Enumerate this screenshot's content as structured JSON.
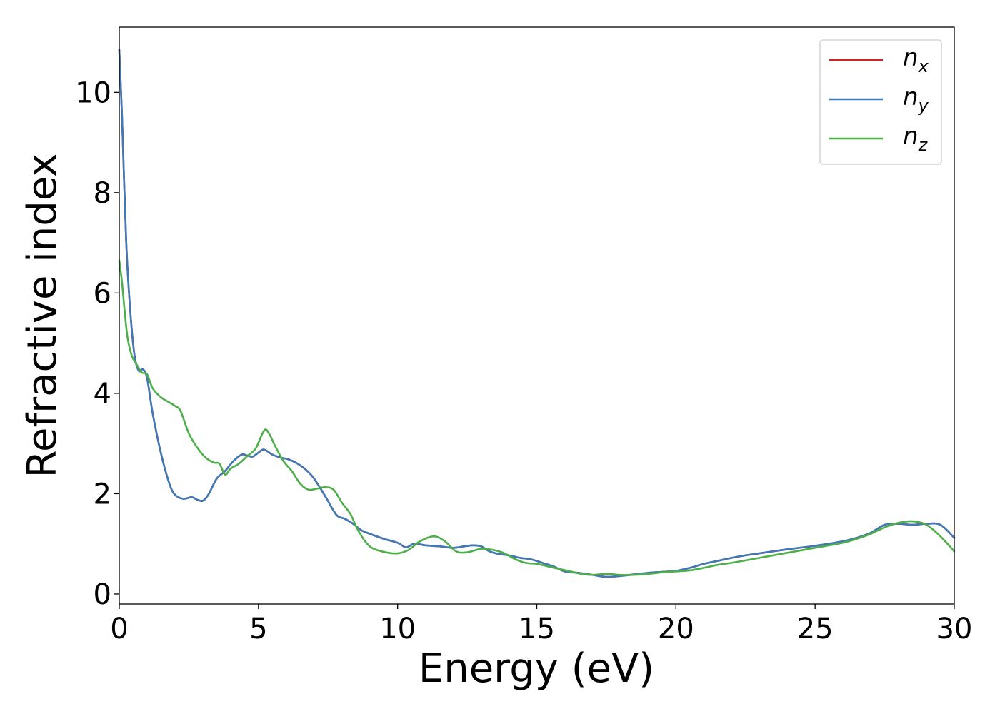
{
  "chart_data": {
    "type": "line",
    "title": "",
    "xlabel": "Energy (eV)",
    "ylabel": "Refractive index",
    "xlim": [
      0,
      30
    ],
    "ylim": [
      -0.2,
      11.3
    ],
    "xticks": [
      0,
      5,
      10,
      15,
      20,
      25,
      30
    ],
    "yticks": [
      0,
      2,
      4,
      6,
      8,
      10
    ],
    "grid": false,
    "legend_position": "top-right",
    "series": [
      {
        "name": "n_x",
        "legend": {
          "base": "n",
          "sub": "x"
        },
        "color": "#e41a1c",
        "x": [
          0,
          0.1,
          0.25,
          0.4,
          0.55,
          0.7,
          0.85,
          1.0,
          1.2,
          1.5,
          1.8,
          2.0,
          2.3,
          2.6,
          2.8,
          3.0,
          3.2,
          3.5,
          3.8,
          4.1,
          4.4,
          4.6,
          4.8,
          5.0,
          5.2,
          5.5,
          5.8,
          6.1,
          6.4,
          6.7,
          7.0,
          7.4,
          7.8,
          8.1,
          8.4,
          8.7,
          9.0,
          9.5,
          10.0,
          10.3,
          10.6,
          11.0,
          11.5,
          12.0,
          12.4,
          12.7,
          13.0,
          13.3,
          13.6,
          14.0,
          14.4,
          14.8,
          15.2,
          15.6,
          16.0,
          16.5,
          17.0,
          17.5,
          18.0,
          18.5,
          19.0,
          19.5,
          20.0,
          20.5,
          21.0,
          21.5,
          22.0,
          22.5,
          23.0,
          24.0,
          25.0,
          26.0,
          26.5,
          27.0,
          27.5,
          28.0,
          28.5,
          29.0,
          29.5,
          30.0
        ],
        "y": [
          10.85,
          9.5,
          7.0,
          5.6,
          4.75,
          4.45,
          4.48,
          4.3,
          3.6,
          2.8,
          2.2,
          1.98,
          1.9,
          1.93,
          1.88,
          1.86,
          1.98,
          2.3,
          2.45,
          2.65,
          2.78,
          2.76,
          2.74,
          2.82,
          2.88,
          2.78,
          2.72,
          2.68,
          2.6,
          2.48,
          2.3,
          1.95,
          1.58,
          1.5,
          1.4,
          1.27,
          1.2,
          1.1,
          1.02,
          0.93,
          1.0,
          0.97,
          0.95,
          0.92,
          0.95,
          0.97,
          0.95,
          0.85,
          0.8,
          0.77,
          0.72,
          0.69,
          0.62,
          0.55,
          0.45,
          0.42,
          0.38,
          0.34,
          0.36,
          0.39,
          0.42,
          0.44,
          0.46,
          0.52,
          0.6,
          0.66,
          0.72,
          0.77,
          0.81,
          0.89,
          0.96,
          1.05,
          1.12,
          1.22,
          1.38,
          1.4,
          1.38,
          1.4,
          1.38,
          1.12
        ]
      },
      {
        "name": "n_y",
        "legend": {
          "base": "n",
          "sub": "y"
        },
        "color": "#3d7ab8",
        "x": [
          0,
          0.1,
          0.25,
          0.4,
          0.55,
          0.7,
          0.85,
          1.0,
          1.2,
          1.5,
          1.8,
          2.0,
          2.3,
          2.6,
          2.8,
          3.0,
          3.2,
          3.5,
          3.8,
          4.1,
          4.4,
          4.6,
          4.8,
          5.0,
          5.2,
          5.5,
          5.8,
          6.1,
          6.4,
          6.7,
          7.0,
          7.4,
          7.8,
          8.1,
          8.4,
          8.7,
          9.0,
          9.5,
          10.0,
          10.3,
          10.6,
          11.0,
          11.5,
          12.0,
          12.4,
          12.7,
          13.0,
          13.3,
          13.6,
          14.0,
          14.4,
          14.8,
          15.2,
          15.6,
          16.0,
          16.5,
          17.0,
          17.5,
          18.0,
          18.5,
          19.0,
          19.5,
          20.0,
          20.5,
          21.0,
          21.5,
          22.0,
          22.5,
          23.0,
          24.0,
          25.0,
          26.0,
          26.5,
          27.0,
          27.5,
          28.0,
          28.5,
          29.0,
          29.5,
          30.0
        ],
        "y": [
          10.85,
          9.5,
          7.0,
          5.6,
          4.75,
          4.45,
          4.48,
          4.3,
          3.6,
          2.8,
          2.2,
          1.98,
          1.9,
          1.93,
          1.88,
          1.86,
          1.98,
          2.3,
          2.45,
          2.65,
          2.78,
          2.76,
          2.74,
          2.82,
          2.88,
          2.78,
          2.72,
          2.68,
          2.6,
          2.48,
          2.3,
          1.95,
          1.58,
          1.5,
          1.4,
          1.27,
          1.2,
          1.1,
          1.02,
          0.93,
          1.0,
          0.97,
          0.95,
          0.92,
          0.95,
          0.97,
          0.95,
          0.85,
          0.8,
          0.77,
          0.72,
          0.69,
          0.62,
          0.55,
          0.45,
          0.42,
          0.38,
          0.34,
          0.36,
          0.39,
          0.42,
          0.44,
          0.46,
          0.52,
          0.6,
          0.66,
          0.72,
          0.77,
          0.81,
          0.89,
          0.96,
          1.05,
          1.12,
          1.22,
          1.38,
          1.4,
          1.38,
          1.4,
          1.38,
          1.12
        ]
      },
      {
        "name": "n_z",
        "legend": {
          "base": "n",
          "sub": "z"
        },
        "color": "#4daf4a",
        "x": [
          0,
          0.1,
          0.2,
          0.3,
          0.45,
          0.6,
          0.8,
          1.0,
          1.2,
          1.5,
          1.8,
          2.0,
          2.2,
          2.5,
          2.8,
          3.1,
          3.4,
          3.6,
          3.8,
          4.0,
          4.3,
          4.6,
          4.9,
          5.1,
          5.25,
          5.4,
          5.6,
          5.9,
          6.2,
          6.5,
          6.8,
          7.1,
          7.4,
          7.7,
          8.0,
          8.3,
          8.6,
          9.0,
          9.5,
          10.0,
          10.4,
          10.8,
          11.3,
          11.7,
          12.1,
          12.5,
          13.0,
          13.4,
          13.8,
          14.2,
          14.6,
          15.0,
          15.4,
          15.8,
          16.2,
          16.6,
          17.0,
          17.5,
          18.0,
          18.5,
          19.0,
          19.5,
          20.0,
          20.5,
          21.0,
          21.5,
          22.0,
          23.0,
          24.0,
          25.0,
          26.0,
          26.5,
          27.0,
          27.5,
          28.0,
          28.5,
          29.0,
          29.5,
          30.0
        ],
        "y": [
          6.65,
          6.2,
          5.6,
          5.1,
          4.75,
          4.6,
          4.42,
          4.38,
          4.1,
          3.92,
          3.82,
          3.75,
          3.65,
          3.2,
          2.92,
          2.72,
          2.62,
          2.6,
          2.38,
          2.5,
          2.6,
          2.75,
          2.9,
          3.15,
          3.28,
          3.18,
          2.95,
          2.65,
          2.45,
          2.2,
          2.08,
          2.1,
          2.13,
          2.08,
          1.82,
          1.6,
          1.25,
          0.95,
          0.84,
          0.81,
          0.88,
          1.05,
          1.15,
          1.05,
          0.85,
          0.83,
          0.9,
          0.88,
          0.82,
          0.7,
          0.62,
          0.6,
          0.55,
          0.5,
          0.45,
          0.4,
          0.38,
          0.4,
          0.38,
          0.38,
          0.4,
          0.43,
          0.45,
          0.47,
          0.52,
          0.58,
          0.62,
          0.72,
          0.82,
          0.92,
          1.02,
          1.1,
          1.2,
          1.33,
          1.42,
          1.45,
          1.38,
          1.15,
          0.85
        ]
      }
    ]
  }
}
